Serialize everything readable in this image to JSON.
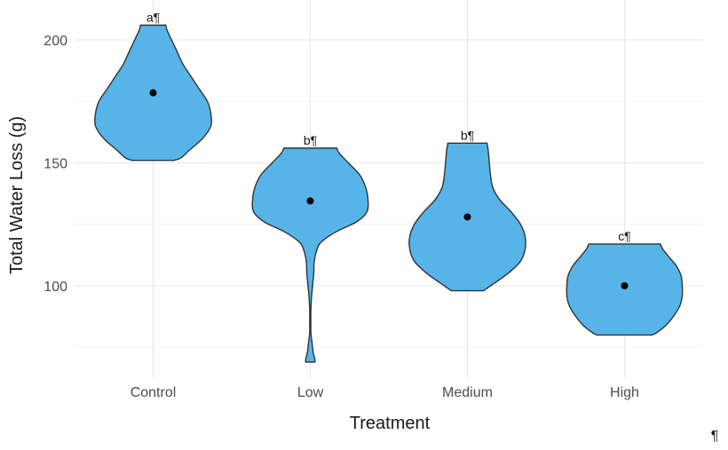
{
  "chart_data": {
    "type": "violin",
    "title": "",
    "xlabel": "Treatment",
    "ylabel": "Total Water Loss (g)",
    "ylim": [
      63,
      215
    ],
    "y_ticks": [
      100,
      150,
      200
    ],
    "grid": true,
    "fill_color": "#56b4e9",
    "categories": [
      "Control",
      "Low",
      "Medium",
      "High"
    ],
    "groups": [
      {
        "category": "Control",
        "label": "a¶",
        "min": 151,
        "max": 206,
        "center": 178.5,
        "density": [
          [
            151,
            0.36
          ],
          [
            152,
            0.48
          ],
          [
            155,
            0.62
          ],
          [
            160,
            0.86
          ],
          [
            165,
            1.0
          ],
          [
            170,
            1.0
          ],
          [
            175,
            0.94
          ],
          [
            180,
            0.8
          ],
          [
            185,
            0.66
          ],
          [
            190,
            0.52
          ],
          [
            195,
            0.42
          ],
          [
            200,
            0.32
          ],
          [
            204,
            0.24
          ],
          [
            206,
            0.22
          ]
        ]
      },
      {
        "category": "Low",
        "label": "b¶",
        "min": 69,
        "max": 156,
        "center": 134.5,
        "density": [
          [
            69,
            0.08
          ],
          [
            70,
            0.08
          ],
          [
            73,
            0.05
          ],
          [
            77,
            0.03
          ],
          [
            81,
            0.01
          ],
          [
            85,
            0.01
          ],
          [
            90,
            0.01
          ],
          [
            95,
            0.02
          ],
          [
            100,
            0.04
          ],
          [
            105,
            0.06
          ],
          [
            110,
            0.07
          ],
          [
            115,
            0.12
          ],
          [
            118,
            0.2
          ],
          [
            122,
            0.45
          ],
          [
            126,
            0.8
          ],
          [
            130,
            0.98
          ],
          [
            135,
            1.0
          ],
          [
            140,
            0.96
          ],
          [
            145,
            0.86
          ],
          [
            150,
            0.66
          ],
          [
            154,
            0.5
          ],
          [
            156,
            0.46
          ]
        ]
      },
      {
        "category": "Medium",
        "label": "b¶",
        "min": 98,
        "max": 158,
        "center": 128,
        "density": [
          [
            98,
            0.28
          ],
          [
            100,
            0.4
          ],
          [
            105,
            0.7
          ],
          [
            110,
            0.92
          ],
          [
            115,
            1.0
          ],
          [
            120,
            1.0
          ],
          [
            125,
            0.92
          ],
          [
            130,
            0.76
          ],
          [
            135,
            0.56
          ],
          [
            140,
            0.44
          ],
          [
            145,
            0.4
          ],
          [
            150,
            0.38
          ],
          [
            155,
            0.36
          ],
          [
            158,
            0.34
          ]
        ]
      },
      {
        "category": "High",
        "label": "c¶",
        "min": 80,
        "max": 117,
        "center": 100,
        "density": [
          [
            80,
            0.48
          ],
          [
            81,
            0.56
          ],
          [
            84,
            0.72
          ],
          [
            88,
            0.86
          ],
          [
            92,
            0.96
          ],
          [
            96,
            1.0
          ],
          [
            100,
            1.0
          ],
          [
            104,
            0.98
          ],
          [
            108,
            0.9
          ],
          [
            112,
            0.76
          ],
          [
            115,
            0.66
          ],
          [
            117,
            0.62
          ]
        ]
      }
    ],
    "corner_mark": "¶"
  }
}
